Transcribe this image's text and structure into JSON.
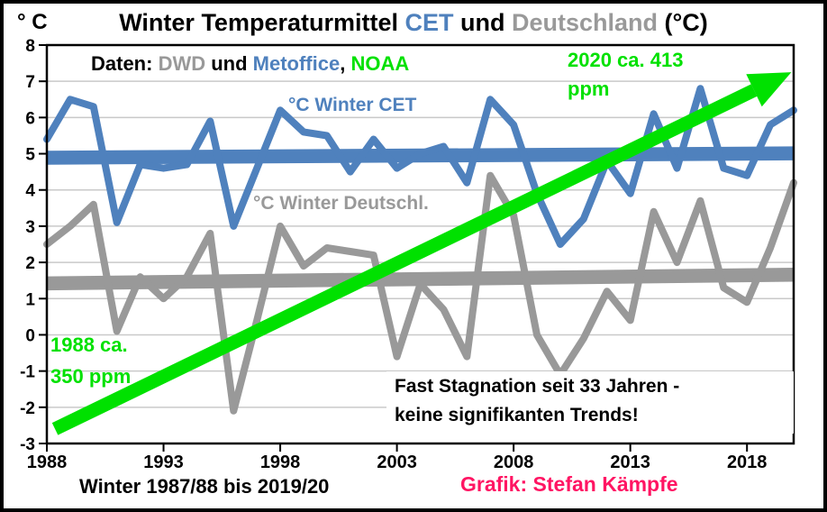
{
  "figure": {
    "title": {
      "prefix": "Winter Temperaturmittel ",
      "cet": "CET",
      "und": " und ",
      "deutschland": "Deutschland",
      "suffix": " (°C)"
    },
    "y_unit_label": "° C",
    "source_line": {
      "label": "Daten: ",
      "dwd": "DWD",
      "und": " und ",
      "metoffice": "Metoffice",
      "comma": ", ",
      "noaa": "NOAA"
    },
    "series_labels": {
      "cet": "°C Winter CET",
      "deutschland": "°C Winter Deutschl."
    },
    "annotations": {
      "co2_start": "1988 ca.\n350 ppm",
      "co2_end": "2020 ca. 413\nppm",
      "stagnation": "Fast Stagnation seit 33 Jahren -\nkeine signifikanten Trends!",
      "footer_caption": "Winter 1987/88 bis 2019/20",
      "credit": "Grafik: Stefan Kämpfe"
    },
    "colors": {
      "cet_blue": "#4f81bd",
      "de_gray": "#999999",
      "co2_green": "#00e100",
      "credit_pink": "#ff1563",
      "grid_gray": "#c9c9c9",
      "axis_black": "#000000",
      "background": "#ffffff"
    }
  },
  "chart_data": {
    "type": "line",
    "title": "Winter Temperaturmittel CET und Deutschland (°C)",
    "xlabel": "Winter 1987/88 bis 2019/20",
    "ylabel": "° C",
    "xlim": [
      1988,
      2020
    ],
    "ylim": [
      -3,
      8
    ],
    "xticks": [
      1988,
      1993,
      1998,
      2003,
      2008,
      2013,
      2018
    ],
    "yticks": [
      -3,
      -2,
      -1,
      0,
      1,
      2,
      3,
      4,
      5,
      6,
      7,
      8
    ],
    "grid": "horizontal",
    "x": [
      1988,
      1989,
      1990,
      1991,
      1992,
      1993,
      1994,
      1995,
      1996,
      1997,
      1998,
      1999,
      2000,
      2001,
      2002,
      2003,
      2004,
      2005,
      2006,
      2007,
      2008,
      2009,
      2010,
      2011,
      2012,
      2013,
      2014,
      2015,
      2016,
      2017,
      2018,
      2019,
      2020
    ],
    "series": [
      {
        "name": "°C Winter CET",
        "color_key": "cet_blue",
        "values": [
          5.4,
          6.5,
          6.3,
          3.1,
          4.7,
          4.6,
          4.7,
          5.9,
          3.0,
          4.6,
          6.2,
          5.6,
          5.5,
          4.5,
          5.4,
          4.6,
          5.0,
          5.2,
          4.2,
          6.5,
          5.8,
          3.9,
          2.5,
          3.2,
          4.8,
          3.9,
          6.1,
          4.6,
          6.8,
          4.6,
          4.4,
          5.8,
          6.2
        ]
      },
      {
        "name": "°C Winter Deutschl.",
        "color_key": "de_gray",
        "values": [
          2.5,
          3.0,
          3.6,
          0.1,
          1.6,
          1.0,
          1.6,
          2.8,
          -2.1,
          0.4,
          3.0,
          1.9,
          2.4,
          2.3,
          2.2,
          -0.6,
          1.4,
          0.7,
          -0.6,
          4.4,
          3.3,
          0.0,
          -1.1,
          -0.1,
          1.2,
          0.4,
          3.4,
          2.0,
          3.7,
          1.3,
          0.9,
          2.4,
          4.2
        ]
      }
    ],
    "trend_lines": [
      {
        "name": "CET Trend (flach)",
        "color_key": "cet_blue",
        "start_value": 4.89,
        "end_value": 5.01
      },
      {
        "name": "Deutschland Trend (flach)",
        "color_key": "de_gray",
        "start_value": 1.42,
        "end_value": 1.66
      }
    ],
    "co2_arrow": {
      "label_start": "1988 ca. 350 ppm",
      "label_end": "2020 ca. 413 ppm",
      "color_key": "co2_green",
      "from": {
        "year": 1988.35,
        "value": -2.6
      },
      "to": {
        "year": 2019.9,
        "value": 7.25
      }
    }
  }
}
